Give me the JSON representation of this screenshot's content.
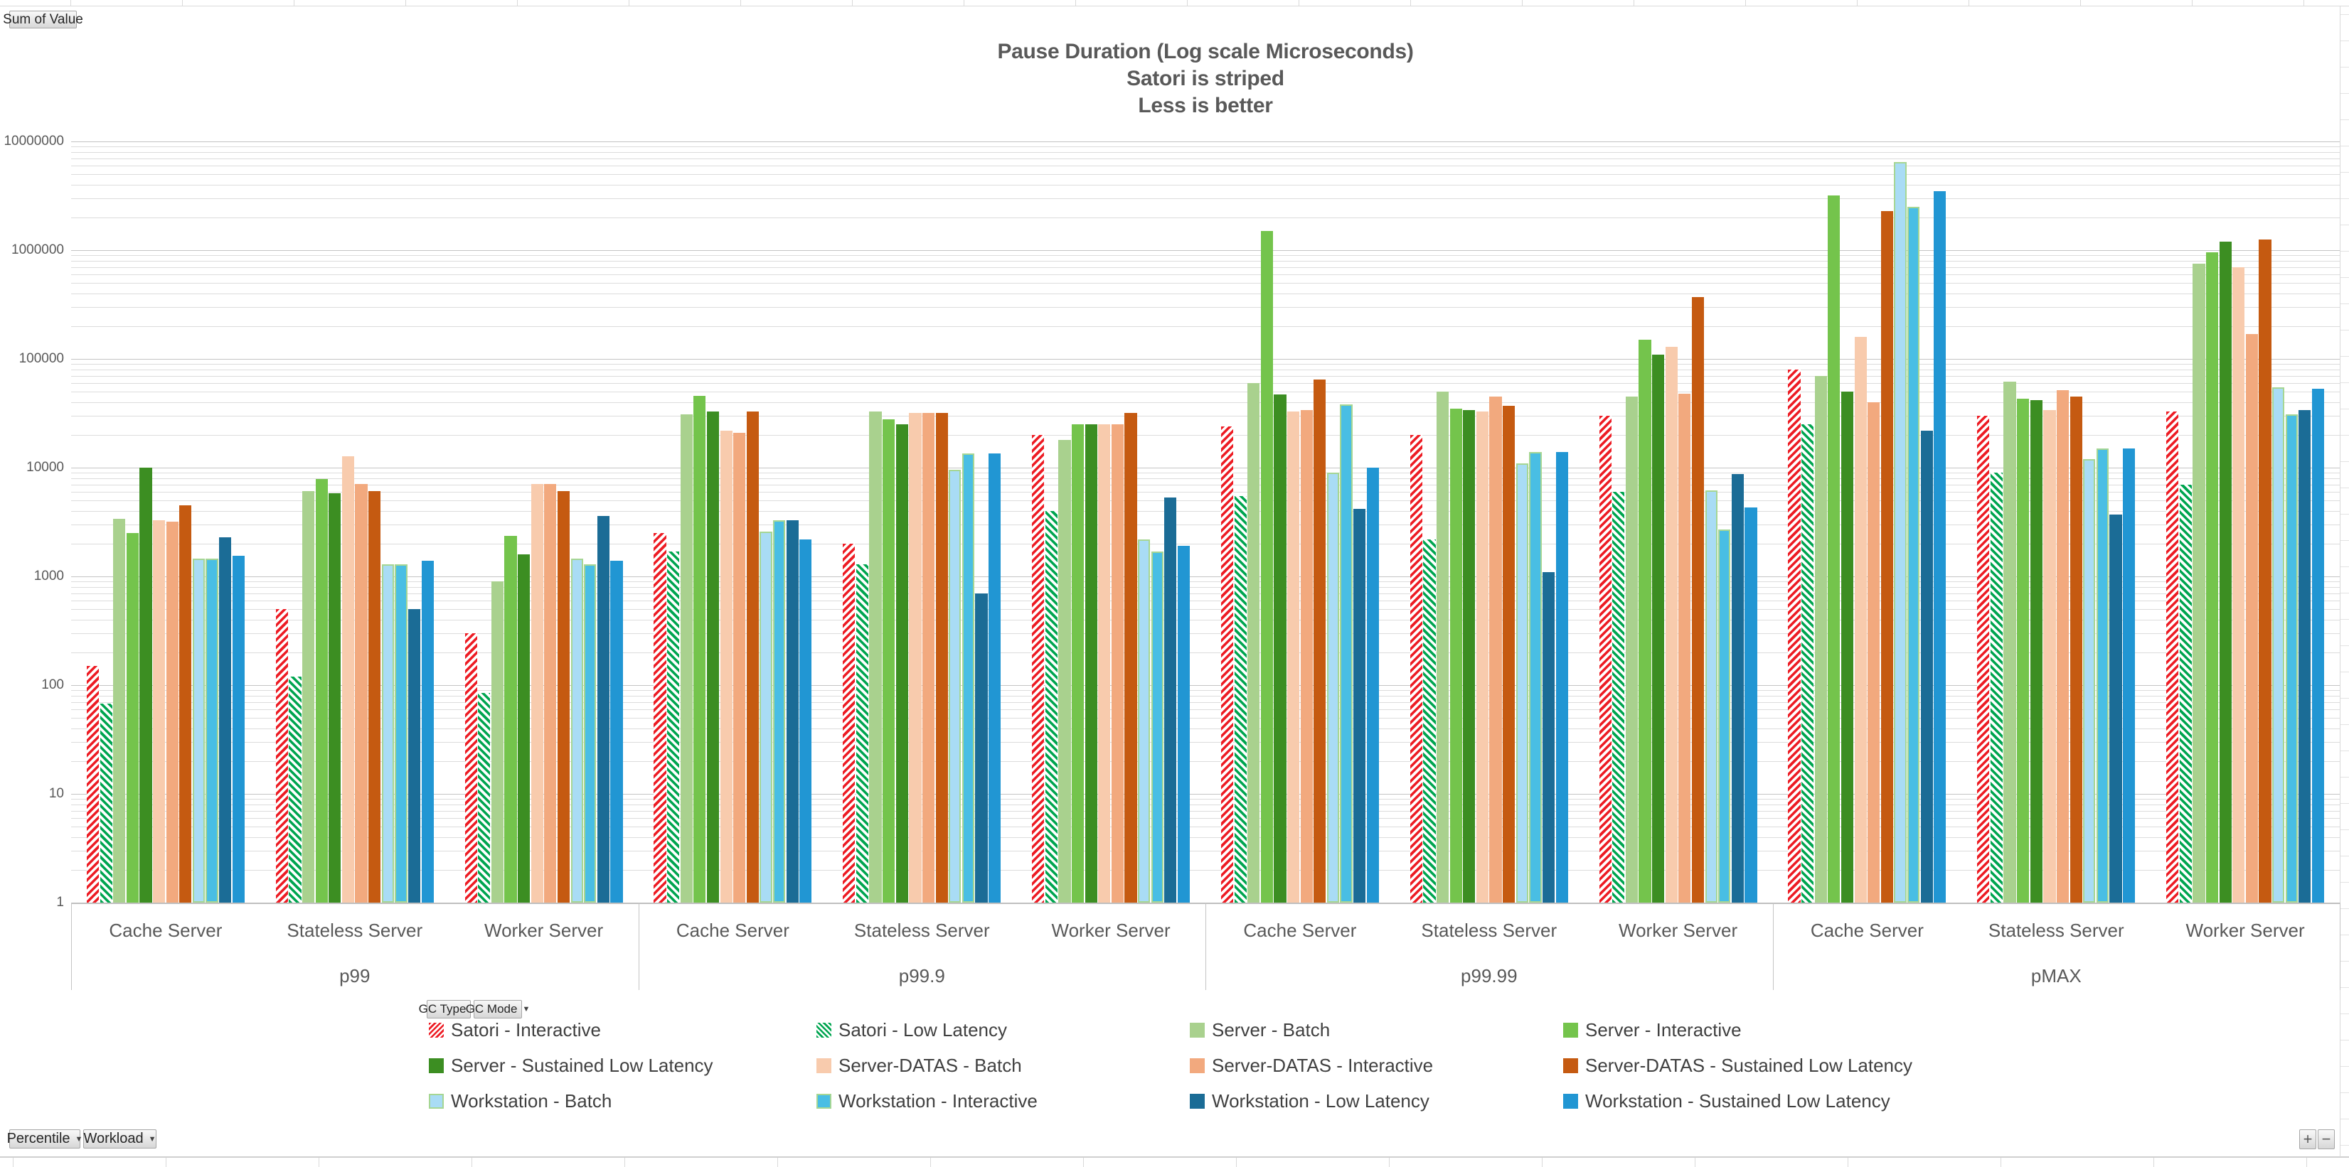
{
  "title": {
    "line1": "Pause Duration (Log scale Microseconds)",
    "line2": "Satori is striped",
    "line3": "Less is better"
  },
  "buttons": {
    "value_field": "Sum of Value",
    "gc_type": "GC Type",
    "gc_mode": "GC Mode",
    "percentile": "Percentile",
    "workload": "Workload",
    "expand": "+",
    "collapse": "−"
  },
  "y_axis": {
    "scale": "log",
    "ticks": [
      "1",
      "10",
      "100",
      "1000",
      "10000",
      "100000",
      "1000000",
      "10000000"
    ]
  },
  "chart_data": {
    "type": "bar",
    "y_scale": "log",
    "ylim": [
      1,
      10000000
    ],
    "unit": "microseconds",
    "grid": "on",
    "legend_position": "bottom",
    "title": "Pause Duration (Log scale Microseconds)",
    "group_labels": {
      "percentiles": [
        "p99",
        "p99.9",
        "p99.99",
        "pMAX"
      ],
      "workloads": [
        "Cache Server",
        "Stateless Server",
        "Worker Server"
      ]
    },
    "categories": [
      {
        "percentile": "p99",
        "workload": "Cache Server"
      },
      {
        "percentile": "p99",
        "workload": "Stateless Server"
      },
      {
        "percentile": "p99",
        "workload": "Worker Server"
      },
      {
        "percentile": "p99.9",
        "workload": "Cache Server"
      },
      {
        "percentile": "p99.9",
        "workload": "Stateless Server"
      },
      {
        "percentile": "p99.9",
        "workload": "Worker Server"
      },
      {
        "percentile": "p99.99",
        "workload": "Cache Server"
      },
      {
        "percentile": "p99.99",
        "workload": "Stateless Server"
      },
      {
        "percentile": "p99.99",
        "workload": "Worker Server"
      },
      {
        "percentile": "pMAX",
        "workload": "Cache Server"
      },
      {
        "percentile": "pMAX",
        "workload": "Stateless Server"
      },
      {
        "percentile": "pMAX",
        "workload": "Worker Server"
      }
    ],
    "series": [
      {
        "name": "Satori - Interactive",
        "style": "striped",
        "direction": "up-right",
        "color": "#ED1C24",
        "values": [
          150,
          500,
          300,
          2500,
          2000,
          20000,
          24000,
          20000,
          30000,
          80000,
          30000,
          33000
        ]
      },
      {
        "name": "Satori - Low Latency",
        "style": "striped",
        "direction": "down-right",
        "color": "#00A550",
        "values": [
          68,
          120,
          85,
          1700,
          1300,
          4000,
          5500,
          2200,
          6000,
          25000,
          9000,
          7000
        ]
      },
      {
        "name": "Server - Batch",
        "style": "solid",
        "color": "#A9D18E",
        "values": [
          3400,
          6100,
          900,
          31000,
          33000,
          18000,
          60000,
          50000,
          45000,
          70000,
          62000,
          750000
        ]
      },
      {
        "name": "Server - Interactive",
        "style": "solid",
        "color": "#74C44C",
        "values": [
          2500,
          7900,
          2350,
          46000,
          28000,
          25000,
          1500000,
          35000,
          150000,
          3200000,
          43000,
          950000
        ]
      },
      {
        "name": "Server - Sustained Low Latency",
        "style": "solid",
        "color": "#3C8E22",
        "values": [
          10000,
          5800,
          1600,
          33000,
          25000,
          25000,
          47000,
          34000,
          110000,
          50000,
          42000,
          1200000
        ]
      },
      {
        "name": "Server-DATAS - Batch",
        "style": "solid",
        "color": "#F8CBAD",
        "values": [
          3300,
          12700,
          7100,
          22000,
          32000,
          25000,
          33000,
          33000,
          130000,
          160000,
          34000,
          700000
        ]
      },
      {
        "name": "Server-DATAS - Interactive",
        "style": "solid",
        "color": "#F2A97E",
        "values": [
          3200,
          7100,
          7100,
          21000,
          32000,
          25000,
          34000,
          45000,
          48000,
          40000,
          52000,
          170000
        ]
      },
      {
        "name": "Server-DATAS - Sustained Low Latency",
        "style": "solid",
        "color": "#C55A11",
        "values": [
          4500,
          6100,
          6100,
          33000,
          32000,
          32000,
          65000,
          37000,
          370000,
          2300000,
          45000,
          1250000
        ]
      },
      {
        "name": "Workstation - Batch",
        "style": "solid",
        "color": "#A9DCF5",
        "border": "#A6D693",
        "values": [
          1450,
          1300,
          1450,
          2600,
          9500,
          2200,
          9000,
          11000,
          6200,
          6500000,
          12000,
          55000
        ]
      },
      {
        "name": "Workstation - Interactive",
        "style": "solid",
        "color": "#49BEE4",
        "border": "#A6D693",
        "values": [
          1450,
          1300,
          1300,
          3300,
          13500,
          1700,
          38000,
          14000,
          2700,
          2500000,
          15000,
          31000
        ]
      },
      {
        "name": "Workstation - Low Latency",
        "style": "solid",
        "color": "#1B6C96",
        "values": [
          2300,
          500,
          3600,
          3300,
          700,
          5300,
          4200,
          1100,
          8800,
          22000,
          3700,
          34000
        ]
      },
      {
        "name": "Workstation - Sustained Low Latency",
        "style": "solid",
        "color": "#2196D3",
        "values": [
          1550,
          1400,
          1400,
          2200,
          13500,
          1900,
          10000,
          14000,
          4300,
          3500000,
          15000,
          53000
        ]
      }
    ]
  }
}
